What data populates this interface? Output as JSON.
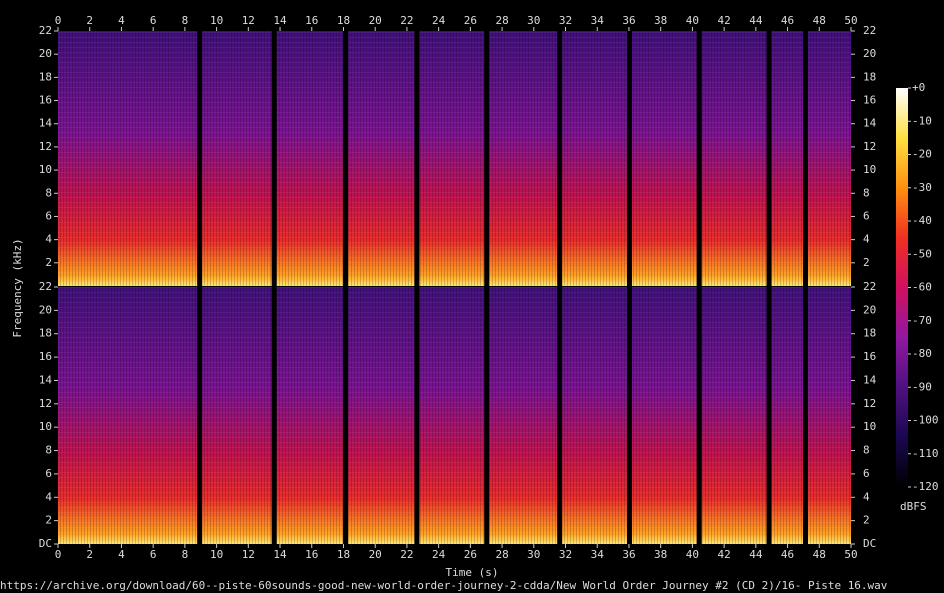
{
  "chart_data": {
    "type": "spectrogram",
    "x_label": "Time (s)",
    "y_label": "Frequency (kHz)",
    "footer": "https://archive.org/download/60--piste-60sounds-good-new-world-order-journey-2-cdda/New World Order Journey #2 (CD 2)/16- Piste 16.wav",
    "xlim": [
      0,
      50
    ],
    "xticks": [
      0,
      2,
      4,
      6,
      8,
      10,
      12,
      14,
      16,
      18,
      20,
      22,
      24,
      26,
      28,
      30,
      32,
      34,
      36,
      38,
      40,
      42,
      44,
      46,
      48,
      50
    ],
    "ylim": [
      0,
      22
    ],
    "yticks": [
      {
        "value": 0,
        "label": "DC"
      },
      2,
      4,
      6,
      8,
      10,
      12,
      14,
      16,
      18,
      20,
      22
    ],
    "gaps": [
      8.9,
      13.6,
      18.1,
      22.6,
      27.0,
      31.6,
      36.0,
      40.4,
      44.8,
      47.1
    ],
    "spectrum_colors": [
      "#ffe870",
      "#ffa020",
      "#e82a2a",
      "#c0124e",
      "#7a1290",
      "#40107a"
    ],
    "colorbar": {
      "label": "dBFS",
      "lim": [
        -120,
        0
      ],
      "ticks": [
        {
          "value": 0,
          "label": "+0"
        },
        -10,
        -20,
        -30,
        -40,
        -50,
        -60,
        -70,
        -80,
        -90,
        -100,
        -110,
        -120
      ],
      "colors": [
        "#ffffff",
        "#ffe040",
        "#ff9010",
        "#f03020",
        "#d01060",
        "#9018a0",
        "#501080",
        "#1a0850",
        "#000000"
      ]
    }
  }
}
